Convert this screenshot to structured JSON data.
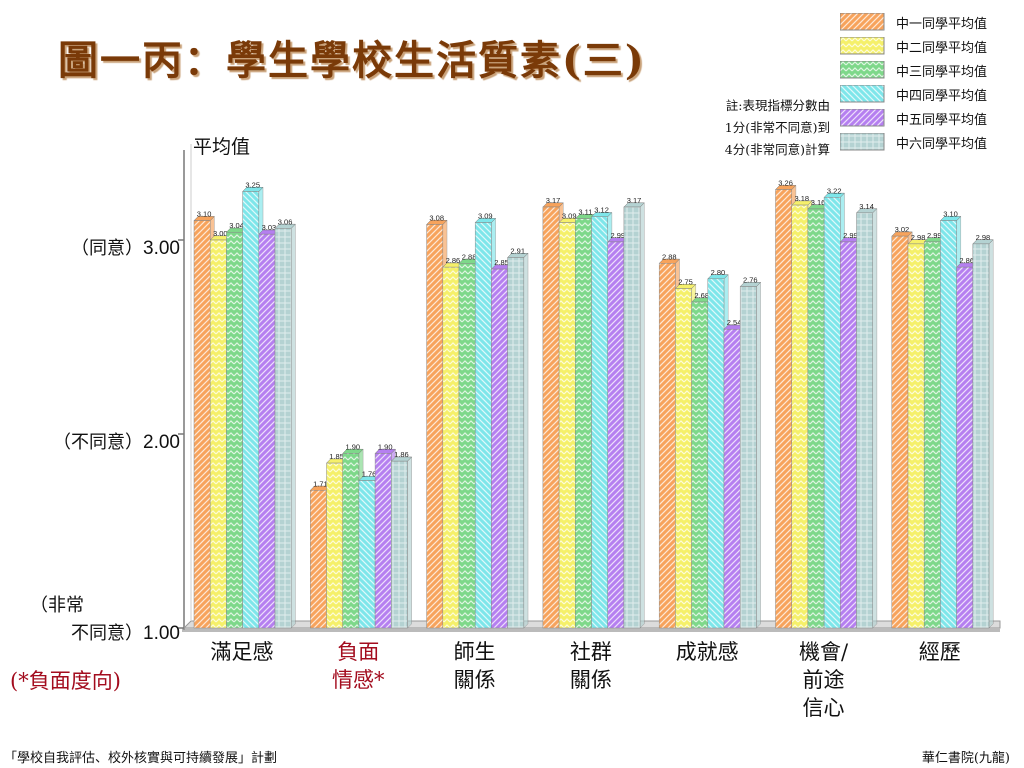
{
  "title": "圖一丙：學生學校生活質素(三)",
  "note": {
    "line1": "註:表現指標分數由",
    "line2": "1分(非常不同意)到",
    "line3": "4分(非常同意)計算"
  },
  "yaxis": {
    "title": "平均值",
    "ticks": [
      {
        "prefix": "（同意）",
        "value": "3.00"
      },
      {
        "prefix": "（不同意）",
        "value": "2.00"
      },
      {
        "prefix_line1": "（非常",
        "prefix": "不同意）",
        "value": "1.00"
      }
    ]
  },
  "negative_note": "(*負面度向)",
  "footer": {
    "left": "「學校自我評估、校外核實與可持續發展」計劃",
    "right": "華仁書院(九龍)"
  },
  "chart_data": {
    "type": "bar",
    "title": "圖一丙：學生學校生活質素(三)",
    "ylabel": "平均值",
    "ylim": [
      1.0,
      3.5
    ],
    "yticks": [
      1.0,
      2.0,
      3.0
    ],
    "legend_position": "top-right",
    "categories": [
      "滿足感",
      "負面情感*",
      "師生關係",
      "社群關係",
      "成就感",
      "機會/前途信心",
      "經歷"
    ],
    "category_lines": [
      [
        "滿足感"
      ],
      [
        "負面",
        "情感*"
      ],
      [
        "師生",
        "關係"
      ],
      [
        "社群",
        "關係"
      ],
      [
        "成就感"
      ],
      [
        "機會/",
        "前途",
        "信心"
      ],
      [
        "經歷"
      ]
    ],
    "negative_category_index": 1,
    "series": [
      {
        "name": "中一同學平均值",
        "color": "#f7a35c",
        "pattern": "diag-right",
        "values": [
          3.1,
          1.71,
          3.08,
          3.17,
          2.88,
          3.26,
          3.02
        ]
      },
      {
        "name": "中二同學平均值",
        "color": "#f5f06a",
        "pattern": "zigzag",
        "values": [
          3.0,
          1.85,
          2.86,
          3.09,
          2.75,
          3.18,
          2.98
        ]
      },
      {
        "name": "中三同學平均值",
        "color": "#7ed88a",
        "pattern": "zigzag",
        "values": [
          3.04,
          1.9,
          2.88,
          3.11,
          2.68,
          3.16,
          2.99
        ]
      },
      {
        "name": "中四同學平均值",
        "color": "#7ee6ea",
        "pattern": "diag-left",
        "values": [
          3.25,
          1.76,
          3.09,
          3.12,
          2.8,
          3.22,
          3.1
        ]
      },
      {
        "name": "中五同學平均值",
        "color": "#b57ff0",
        "pattern": "diag-right",
        "values": [
          3.03,
          1.9,
          2.85,
          2.99,
          2.54,
          2.99,
          2.86
        ]
      },
      {
        "name": "中六同學平均值",
        "color": "#b4d2d2",
        "pattern": "grid",
        "values": [
          3.06,
          1.86,
          2.91,
          3.17,
          2.76,
          3.14,
          2.98
        ]
      }
    ]
  }
}
